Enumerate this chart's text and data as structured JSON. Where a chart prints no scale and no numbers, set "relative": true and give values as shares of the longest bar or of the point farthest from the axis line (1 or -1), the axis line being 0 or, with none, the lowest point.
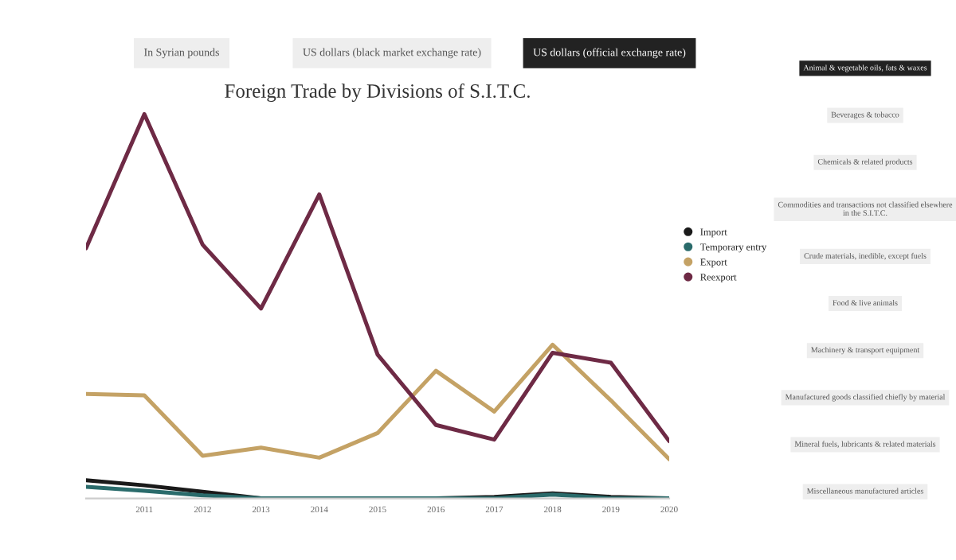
{
  "chart_data": {
    "type": "line",
    "title": "Foreign Trade by Divisions of S.I.T.C.",
    "relative": true,
    "categories": [
      null,
      "2011",
      "2012",
      "2013",
      "2014",
      "2015",
      "2016",
      "2017",
      "2018",
      "2019",
      "2020"
    ],
    "series": [
      {
        "name": "Import",
        "color": "#1a1a1a",
        "values": [
          0.047,
          0.034,
          0.017,
          0,
          0,
          0,
          0,
          0.004,
          0.013,
          0.004,
          0
        ]
      },
      {
        "name": "Temporary entry",
        "color": "#2a6b6b",
        "values": [
          0.03,
          0.02,
          0.008,
          0,
          0,
          0,
          0,
          0,
          0.01,
          0,
          0
        ]
      },
      {
        "name": "Export",
        "color": "#c4a265",
        "values": [
          0.272,
          0.268,
          0.111,
          0.132,
          0.106,
          0.17,
          0.332,
          0.226,
          0.4,
          0.255,
          0.102
        ]
      },
      {
        "name": "Reexport",
        "color": "#6e2a45",
        "values": [
          0.651,
          1,
          0.66,
          0.494,
          0.791,
          0.374,
          0.191,
          0.153,
          0.379,
          0.353,
          0.149
        ]
      }
    ],
    "legend": "right",
    "grid": false,
    "marker": "none",
    "line_style": "solid",
    "annotations": [
      "In Syrian pounds",
      "US dollars (black market exchange rate)",
      "US dollars (official exchange rate)",
      "Animal & vegetable oils, fats & waxes",
      "Beverages & tobacco",
      "Chemicals & related products",
      "Commodities and transactions not classified elsewhere in the S.I.T.C.",
      "Crude materials, inedible, except fuels",
      "Food & live animals",
      "Machinery & transport equipment",
      "Manufactured goods classified chiefly by material",
      "Mineral fuels, lubricants & related materials",
      "Miscellaneous manufactured articles"
    ]
  }
}
